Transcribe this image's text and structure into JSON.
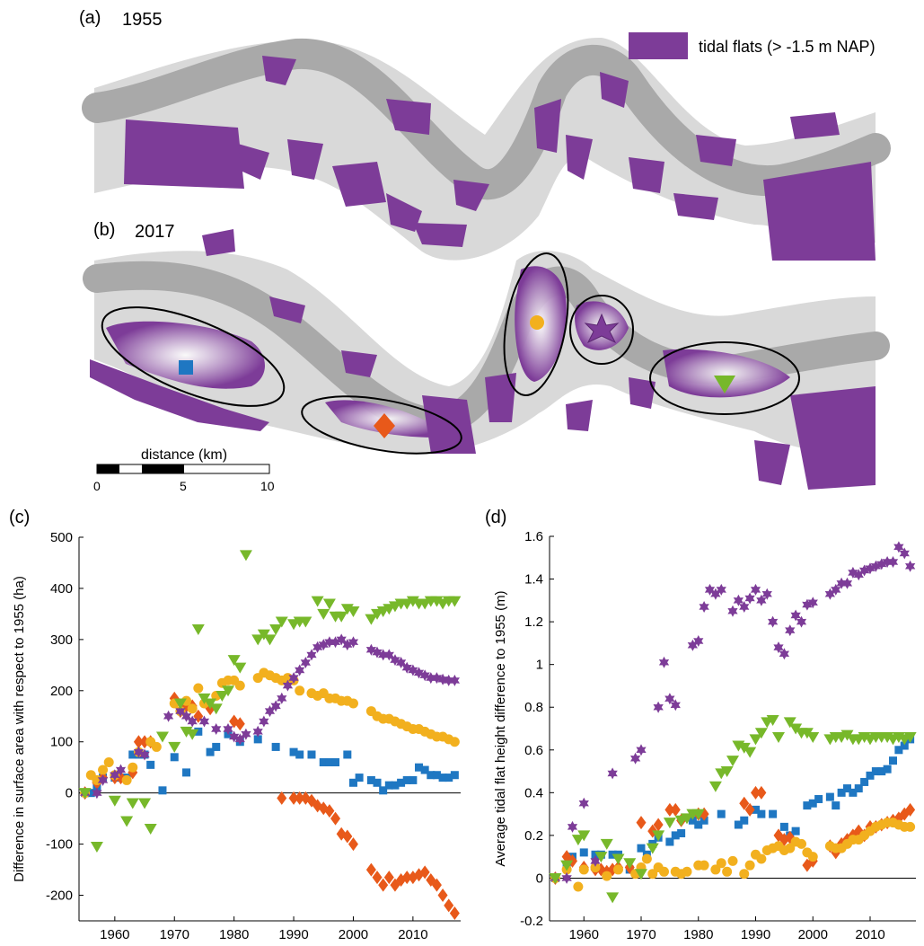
{
  "panels": {
    "a": {
      "label": "(a)",
      "year": "1955"
    },
    "b": {
      "label": "(b)",
      "year": "2017"
    },
    "c": {
      "label": "(c)"
    },
    "d": {
      "label": "(d)"
    }
  },
  "legend": {
    "label": "tidal flats (> -1.5 m NAP)",
    "color": "#7d3c98"
  },
  "scalebar": {
    "title": "distance (km)",
    "ticks": [
      "0",
      "5",
      "10"
    ]
  },
  "colors": {
    "flat": "#7d3c98",
    "channel_dark": "#a9a9a9",
    "channel_light": "#d9d9d9",
    "blue": "#1f77c2",
    "orange": "#e8591a",
    "yellow": "#f2b01e",
    "purple": "#7d3c98",
    "green": "#77b82a"
  },
  "chart_data": [
    {
      "type": "scatter",
      "title": "",
      "xlabel": "",
      "ylabel": "Difference in surface area with respect to 1955 (ha)",
      "xlim": [
        1954,
        2018
      ],
      "ylim": [
        -250,
        500
      ],
      "xticks": [
        1960,
        1970,
        1980,
        1990,
        2000,
        2010
      ],
      "yticks": [
        -200,
        -100,
        0,
        100,
        200,
        300,
        400,
        500
      ],
      "zero_line": true,
      "series": [
        {
          "marker": "square",
          "color": "#1f77c2",
          "x": [
            1955,
            1956,
            1957,
            1958,
            1960,
            1962,
            1963,
            1964,
            1965,
            1966,
            1968,
            1970,
            1972,
            1974,
            1976,
            1977,
            1979,
            1981,
            1984,
            1987,
            1990,
            1991,
            1993,
            1995,
            1996,
            1997,
            1999,
            2000,
            2001,
            2003,
            2004,
            2005,
            2006,
            2007,
            2008,
            2009,
            2010,
            2011,
            2012,
            2013,
            2014,
            2015,
            2016,
            2017
          ],
          "y": [
            0,
            0,
            10,
            30,
            30,
            30,
            75,
            75,
            75,
            55,
            5,
            70,
            40,
            120,
            80,
            90,
            115,
            100,
            105,
            90,
            80,
            75,
            75,
            60,
            60,
            60,
            75,
            20,
            30,
            25,
            20,
            5,
            15,
            15,
            20,
            25,
            25,
            50,
            45,
            35,
            35,
            30,
            30,
            35
          ]
        },
        {
          "marker": "diamond",
          "color": "#e8591a",
          "x": [
            1955,
            1957,
            1958,
            1960,
            1961,
            1963,
            1964,
            1965,
            1966,
            1970,
            1971,
            1972,
            1973,
            1974,
            1976,
            1980,
            1981,
            1988,
            1990,
            1991,
            1992,
            1993,
            1994,
            1995,
            1996,
            1997,
            1998,
            1999,
            2000,
            2003,
            2004,
            2005,
            2006,
            2007,
            2008,
            2009,
            2010,
            2011,
            2012,
            2013,
            2014,
            2015,
            2016,
            2017
          ],
          "y": [
            0,
            20,
            30,
            30,
            30,
            40,
            100,
            100,
            100,
            185,
            160,
            170,
            170,
            150,
            165,
            140,
            135,
            -10,
            -10,
            -10,
            -10,
            -15,
            -25,
            -30,
            -35,
            -50,
            -80,
            -85,
            -100,
            -150,
            -165,
            -180,
            -165,
            -180,
            -170,
            -165,
            -165,
            -160,
            -155,
            -170,
            -180,
            -200,
            -220,
            -235
          ]
        },
        {
          "marker": "circle",
          "color": "#f2b01e",
          "x": [
            1955,
            1956,
            1957,
            1958,
            1959,
            1960,
            1962,
            1963,
            1964,
            1966,
            1967,
            1970,
            1971,
            1972,
            1973,
            1974,
            1975,
            1977,
            1978,
            1979,
            1980,
            1981,
            1984,
            1985,
            1986,
            1987,
            1988,
            1989,
            1990,
            1991,
            1993,
            1994,
            1995,
            1996,
            1997,
            1998,
            1999,
            2000,
            2003,
            2004,
            2005,
            2006,
            2007,
            2008,
            2009,
            2010,
            2011,
            2012,
            2013,
            2014,
            2015,
            2016,
            2017
          ],
          "y": [
            0,
            35,
            25,
            45,
            60,
            35,
            25,
            50,
            80,
            100,
            90,
            175,
            160,
            180,
            165,
            205,
            175,
            190,
            215,
            220,
            220,
            210,
            225,
            235,
            230,
            225,
            220,
            225,
            220,
            200,
            195,
            190,
            195,
            185,
            185,
            180,
            180,
            175,
            160,
            150,
            145,
            145,
            140,
            135,
            130,
            125,
            125,
            120,
            115,
            110,
            110,
            105,
            100
          ]
        },
        {
          "marker": "star",
          "color": "#7d3c98",
          "x": [
            1955,
            1957,
            1958,
            1960,
            1961,
            1964,
            1965,
            1969,
            1971,
            1972,
            1973,
            1975,
            1977,
            1979,
            1980,
            1981,
            1982,
            1984,
            1985,
            1986,
            1987,
            1988,
            1989,
            1990,
            1991,
            1992,
            1993,
            1994,
            1995,
            1996,
            1997,
            1998,
            1999,
            2000,
            2003,
            2004,
            2005,
            2006,
            2007,
            2008,
            2009,
            2010,
            2011,
            2012,
            2013,
            2014,
            2015,
            2016,
            2017
          ],
          "y": [
            0,
            0,
            25,
            35,
            45,
            80,
            75,
            150,
            160,
            150,
            140,
            140,
            125,
            125,
            110,
            105,
            115,
            120,
            140,
            160,
            170,
            185,
            210,
            225,
            240,
            255,
            270,
            285,
            290,
            295,
            295,
            300,
            290,
            295,
            280,
            275,
            270,
            270,
            260,
            255,
            245,
            240,
            235,
            230,
            225,
            225,
            222,
            220,
            220
          ]
        },
        {
          "marker": "triangle-down",
          "color": "#77b82a",
          "x": [
            1955,
            1957,
            1960,
            1962,
            1963,
            1965,
            1966,
            1968,
            1970,
            1971,
            1972,
            1973,
            1974,
            1975,
            1976,
            1977,
            1978,
            1979,
            1980,
            1981,
            1982,
            1984,
            1985,
            1986,
            1987,
            1988,
            1990,
            1991,
            1992,
            1994,
            1995,
            1996,
            1997,
            1998,
            1999,
            2000,
            2003,
            2004,
            2005,
            2006,
            2007,
            2008,
            2009,
            2010,
            2011,
            2012,
            2013,
            2014,
            2015,
            2016,
            2017
          ],
          "y": [
            0,
            -105,
            -15,
            -55,
            -20,
            -20,
            -70,
            110,
            90,
            175,
            120,
            115,
            320,
            185,
            175,
            165,
            190,
            200,
            260,
            245,
            465,
            300,
            310,
            300,
            320,
            335,
            330,
            335,
            335,
            375,
            350,
            370,
            345,
            345,
            360,
            355,
            340,
            350,
            355,
            360,
            365,
            370,
            370,
            375,
            370,
            370,
            375,
            375,
            370,
            375,
            375
          ]
        }
      ]
    },
    {
      "type": "scatter",
      "title": "",
      "xlabel": "",
      "ylabel": "Average tidal flat height difference to 1955 (m)",
      "xlim": [
        1954,
        2018
      ],
      "ylim": [
        -0.2,
        1.6
      ],
      "xticks": [
        1960,
        1970,
        1980,
        1990,
        2000,
        2010
      ],
      "yticks": [
        -0.2,
        0,
        0.2,
        0.4,
        0.6,
        0.8,
        1,
        1.2,
        1.4,
        1.6
      ],
      "zero_line": true,
      "series": [
        {
          "marker": "square",
          "color": "#1f77c2",
          "x": [
            1955,
            1957,
            1958,
            1960,
            1962,
            1963,
            1965,
            1966,
            1968,
            1970,
            1971,
            1972,
            1973,
            1975,
            1976,
            1977,
            1979,
            1980,
            1981,
            1984,
            1987,
            1988,
            1990,
            1991,
            1993,
            1995,
            1996,
            1997,
            1999,
            2000,
            2001,
            2003,
            2004,
            2005,
            2006,
            2007,
            2008,
            2009,
            2010,
            2011,
            2012,
            2013,
            2014,
            2015,
            2016,
            2017
          ],
          "y": [
            0,
            0.05,
            0.1,
            0.12,
            0.11,
            0.11,
            0.11,
            0.11,
            0.04,
            0.14,
            0.11,
            0.16,
            0.19,
            0.17,
            0.2,
            0.21,
            0.27,
            0.25,
            0.27,
            0.3,
            0.25,
            0.27,
            0.32,
            0.3,
            0.3,
            0.24,
            0.2,
            0.22,
            0.34,
            0.35,
            0.37,
            0.38,
            0.34,
            0.4,
            0.42,
            0.4,
            0.42,
            0.45,
            0.48,
            0.5,
            0.5,
            0.51,
            0.55,
            0.6,
            0.62,
            0.65
          ]
        },
        {
          "marker": "diamond",
          "color": "#e8591a",
          "x": [
            1955,
            1957,
            1958,
            1960,
            1962,
            1963,
            1964,
            1965,
            1966,
            1968,
            1970,
            1972,
            1973,
            1975,
            1976,
            1977,
            1980,
            1981,
            1988,
            1989,
            1990,
            1991,
            1994,
            1995,
            1996,
            1999,
            2000,
            2003,
            2004,
            2005,
            2006,
            2007,
            2008,
            2009,
            2010,
            2011,
            2012,
            2013,
            2014,
            2015,
            2016,
            2017
          ],
          "y": [
            0,
            0.1,
            0.08,
            0.05,
            0.04,
            0.04,
            0.03,
            0.04,
            0.05,
            0.05,
            0.26,
            0.22,
            0.25,
            0.32,
            0.32,
            0.27,
            0.3,
            0.3,
            0.35,
            0.32,
            0.4,
            0.4,
            0.2,
            0.18,
            0.19,
            0.06,
            0.08,
            0.15,
            0.12,
            0.16,
            0.18,
            0.2,
            0.22,
            0.2,
            0.24,
            0.24,
            0.25,
            0.26,
            0.27,
            0.28,
            0.3,
            0.32
          ]
        },
        {
          "marker": "circle",
          "color": "#f2b01e",
          "x": [
            1955,
            1957,
            1959,
            1960,
            1962,
            1964,
            1966,
            1969,
            1970,
            1971,
            1972,
            1973,
            1974,
            1976,
            1977,
            1978,
            1980,
            1981,
            1983,
            1984,
            1985,
            1986,
            1988,
            1989,
            1990,
            1991,
            1992,
            1993,
            1994,
            1995,
            1996,
            1997,
            1998,
            1999,
            2000,
            2003,
            2004,
            2005,
            2006,
            2007,
            2008,
            2009,
            2010,
            2011,
            2012,
            2013,
            2014,
            2015,
            2016,
            2017
          ],
          "y": [
            0,
            0.04,
            -0.04,
            0.04,
            0.05,
            0.01,
            0.04,
            0.02,
            0.05,
            0.09,
            0.02,
            0.05,
            0.03,
            0.03,
            0.02,
            0.03,
            0.06,
            0.06,
            0.04,
            0.07,
            0.03,
            0.08,
            0.02,
            0.06,
            0.11,
            0.09,
            0.13,
            0.14,
            0.15,
            0.13,
            0.14,
            0.17,
            0.16,
            0.12,
            0.1,
            0.15,
            0.14,
            0.14,
            0.16,
            0.18,
            0.18,
            0.2,
            0.22,
            0.24,
            0.25,
            0.26,
            0.26,
            0.25,
            0.24,
            0.24
          ]
        },
        {
          "marker": "star",
          "color": "#7d3c98",
          "x": [
            1955,
            1957,
            1958,
            1960,
            1962,
            1965,
            1969,
            1970,
            1973,
            1974,
            1975,
            1976,
            1979,
            1980,
            1981,
            1982,
            1983,
            1984,
            1986,
            1987,
            1988,
            1989,
            1990,
            1991,
            1992,
            1993,
            1994,
            1995,
            1996,
            1997,
            1998,
            1999,
            2000,
            2003,
            2004,
            2005,
            2006,
            2007,
            2008,
            2009,
            2010,
            2011,
            2012,
            2013,
            2014,
            2015,
            2016,
            2017
          ],
          "y": [
            0,
            0,
            0.24,
            0.35,
            0.08,
            0.49,
            0.56,
            0.6,
            0.8,
            1.01,
            0.84,
            0.81,
            1.09,
            1.11,
            1.27,
            1.35,
            1.33,
            1.35,
            1.25,
            1.3,
            1.27,
            1.31,
            1.35,
            1.3,
            1.33,
            1.2,
            1.08,
            1.05,
            1.16,
            1.23,
            1.2,
            1.28,
            1.29,
            1.33,
            1.35,
            1.38,
            1.38,
            1.43,
            1.42,
            1.44,
            1.45,
            1.46,
            1.47,
            1.48,
            1.48,
            1.55,
            1.52,
            1.46
          ]
        },
        {
          "marker": "triangle-down",
          "color": "#77b82a",
          "x": [
            1955,
            1957,
            1959,
            1960,
            1963,
            1964,
            1965,
            1966,
            1968,
            1970,
            1972,
            1973,
            1975,
            1977,
            1978,
            1979,
            1980,
            1983,
            1984,
            1985,
            1986,
            1987,
            1988,
            1989,
            1990,
            1991,
            1992,
            1993,
            1994,
            1996,
            1997,
            1998,
            1999,
            2000,
            2003,
            2004,
            2005,
            2006,
            2007,
            2008,
            2009,
            2010,
            2011,
            2012,
            2013,
            2014,
            2015,
            2016,
            2017
          ],
          "y": [
            0,
            0.06,
            0.18,
            0.2,
            0.1,
            0.16,
            -0.09,
            0.09,
            0.07,
            0.02,
            0.14,
            0.2,
            0.26,
            0.27,
            0.28,
            0.3,
            0.3,
            0.43,
            0.49,
            0.5,
            0.55,
            0.62,
            0.61,
            0.59,
            0.65,
            0.68,
            0.73,
            0.74,
            0.66,
            0.73,
            0.7,
            0.68,
            0.68,
            0.66,
            0.65,
            0.66,
            0.66,
            0.67,
            0.65,
            0.65,
            0.66,
            0.65,
            0.66,
            0.66,
            0.66,
            0.65,
            0.66,
            0.65,
            0.66
          ]
        }
      ]
    }
  ]
}
